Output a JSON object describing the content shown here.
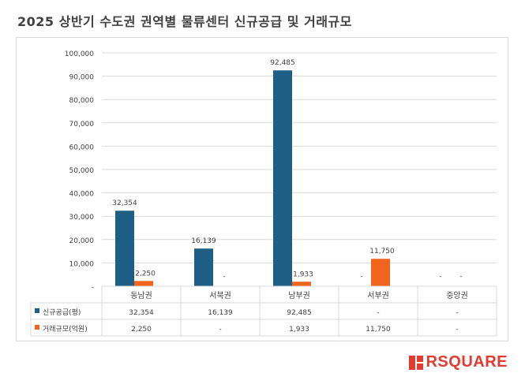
{
  "title": "2025 상반기 수도권 권역별 물류센터 신규공급 및 거래규모",
  "logo": {
    "text": "RSQUARE",
    "color": "#e03c31"
  },
  "chart_data": {
    "type": "bar",
    "categories": [
      "동남권",
      "서북권",
      "남부권",
      "서부권",
      "중앙권"
    ],
    "ylim": [
      0,
      100000
    ],
    "yticks": [
      0,
      10000,
      20000,
      30000,
      40000,
      50000,
      60000,
      70000,
      80000,
      90000,
      100000
    ],
    "ytick_labels": [
      "-",
      "10,000",
      "20,000",
      "30,000",
      "40,000",
      "50,000",
      "60,000",
      "70,000",
      "80,000",
      "90,000",
      "100,000"
    ],
    "grid": true,
    "series": [
      {
        "name": "신규공급(평)",
        "color": "#1f5f85",
        "values": [
          32354,
          16139,
          92485,
          0,
          0
        ],
        "labels": [
          "32,354",
          "16,139",
          "92,485",
          "-",
          "-"
        ]
      },
      {
        "name": "거래규모(억원)",
        "color": "#f0641e",
        "values": [
          2250,
          0,
          1933,
          11750,
          0
        ],
        "labels": [
          "2,250",
          "-",
          "1,933",
          "11,750",
          "-"
        ]
      }
    ]
  }
}
